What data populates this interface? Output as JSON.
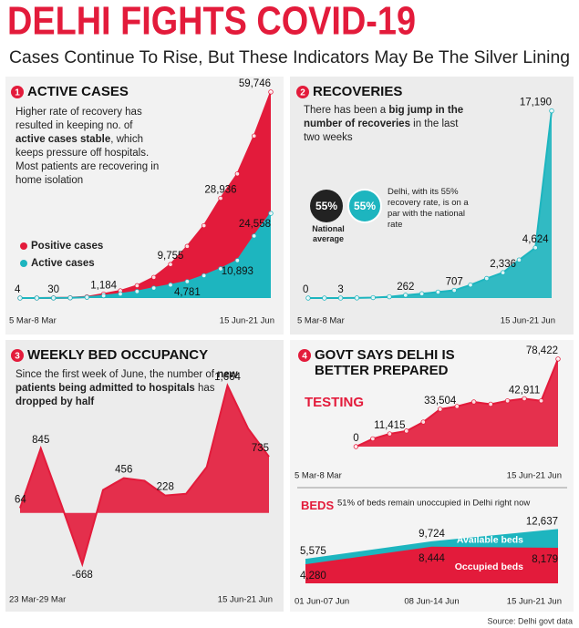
{
  "title": "DELHI FIGHTS COVID-19",
  "subtitle": "Cases Continue To Rise, But These Indicators May Be The Silver Lining",
  "source": "Source: Delhi govt data",
  "chart_data": [
    {
      "type": "area",
      "badge": 1,
      "title": "ACTIVE CASES",
      "description": [
        {
          "text": "Higher rate of recovery has resulted in keeping no. of ",
          "bold": false
        },
        {
          "text": "active cases stable",
          "bold": true
        },
        {
          "text": ", which keeps pressure off hospitals. Most patients are recovering in home isolation",
          "bold": false
        }
      ],
      "categories": [
        "5 Mar-8 Mar",
        null,
        null,
        null,
        null,
        null,
        null,
        null,
        null,
        null,
        null,
        null,
        null,
        null,
        null,
        "15 Jun-21 Jun"
      ],
      "series": [
        {
          "name": "Positive cases",
          "color": "#e31b3b",
          "values": [
            4,
            10,
            30,
            90,
            350,
            1184,
            2100,
            3600,
            6000,
            9755,
            15000,
            21000,
            28936,
            36000,
            47000,
            59746
          ],
          "value_labels": [
            "4",
            null,
            "30",
            null,
            null,
            "1,184",
            null,
            null,
            null,
            "9,755",
            null,
            null,
            "28,936",
            null,
            null,
            "59,746"
          ]
        },
        {
          "name": "Active cases",
          "color": "#1db5bf",
          "values": [
            2,
            8,
            20,
            60,
            220,
            650,
            1200,
            1900,
            2900,
            3800,
            4781,
            6500,
            8500,
            10893,
            18000,
            24558
          ],
          "value_labels": [
            null,
            null,
            null,
            null,
            null,
            null,
            null,
            null,
            null,
            null,
            "4,781",
            null,
            null,
            "10,893",
            null,
            "24,558"
          ]
        }
      ],
      "ylim": [
        0,
        60000
      ],
      "markers": true,
      "legend": "left"
    },
    {
      "type": "area",
      "badge": 2,
      "title": "RECOVERIES",
      "description": [
        {
          "text": "There has been a ",
          "bold": false
        },
        {
          "text": "big jump in the number of recoveries",
          "bold": true
        },
        {
          "text": " in the last two weeks",
          "bold": false
        }
      ],
      "annotations": {
        "national_rate": "55%",
        "national_label": "National average",
        "delhi_rate": "55%",
        "note": "Delhi, with its 55% recovery rate, is on a par with the national rate"
      },
      "categories": [
        "5 Mar-8 Mar",
        null,
        null,
        null,
        null,
        null,
        null,
        null,
        null,
        null,
        null,
        null,
        null,
        null,
        null,
        "15 Jun-21 Jun"
      ],
      "color": "#1db5bf",
      "values": [
        0,
        1,
        3,
        10,
        40,
        120,
        262,
        400,
        550,
        707,
        1200,
        1800,
        2336,
        3500,
        4624,
        17190
      ],
      "value_labels": [
        "0",
        null,
        "3",
        null,
        null,
        null,
        "262",
        null,
        null,
        "707",
        null,
        null,
        "2,336",
        null,
        "4,624",
        "17,190"
      ],
      "ylim": [
        0,
        18000
      ],
      "markers": true
    },
    {
      "type": "area",
      "badge": 3,
      "title": "WEEKLY BED OCCUPANCY",
      "description": [
        {
          "text": "Since the first week of June, the number of ",
          "bold": false
        },
        {
          "text": "new patients being admitted to hospitals",
          "bold": true
        },
        {
          "text": " has ",
          "bold": false
        },
        {
          "text": "dropped by half",
          "bold": true
        }
      ],
      "categories": [
        "23 Mar-29 Mar",
        null,
        null,
        null,
        null,
        null,
        null,
        null,
        null,
        null,
        null,
        null,
        "15 Jun-21 Jun"
      ],
      "color": "#e31b3b",
      "values": [
        64,
        845,
        100,
        -668,
        300,
        456,
        420,
        228,
        250,
        600,
        1664,
        1100,
        735
      ],
      "value_labels": [
        "64",
        "845",
        null,
        "-668",
        null,
        "456",
        null,
        "228",
        null,
        null,
        "1,664",
        null,
        "735"
      ],
      "ylim": [
        -800,
        1700
      ],
      "markers": false
    },
    {
      "type": "area",
      "badge": 4,
      "title": "GOVT SAYS DELHI IS BETTER PREPARED",
      "subtitle": "TESTING",
      "categories": [
        "5 Mar-8 Mar",
        null,
        null,
        null,
        null,
        null,
        null,
        null,
        null,
        null,
        null,
        null,
        null,
        null,
        null,
        "15 Jun-21 Jun"
      ],
      "color": "#e31b3b",
      "values": [
        null,
        null,
        null,
        0,
        7000,
        11415,
        14000,
        22000,
        33504,
        36000,
        40000,
        38000,
        41000,
        42911,
        41000,
        78422
      ],
      "value_labels": [
        null,
        null,
        null,
        "0",
        null,
        "11,415",
        null,
        null,
        "33,504",
        null,
        null,
        null,
        null,
        "42,911",
        null,
        "78,422"
      ],
      "ylim": [
        0,
        80000
      ],
      "markers": true
    },
    {
      "type": "area",
      "title": "BEDS",
      "subtitle": "51% of beds remain unoccupied in Delhi right now",
      "categories": [
        "01 Jun-07 Jun",
        "08 Jun-14 Jun",
        "15 Jun-21 Jun"
      ],
      "series": [
        {
          "name": "Available beds",
          "color": "#1db5bf",
          "values": [
            5575,
            9724,
            12637
          ],
          "value_labels": [
            "5,575",
            "9,724",
            "12,637"
          ]
        },
        {
          "name": "Occupied beds",
          "color": "#e31b3b",
          "values": [
            4280,
            8444,
            8179
          ],
          "value_labels": [
            "4,280",
            "8,444",
            "8,179"
          ]
        }
      ],
      "ylim": [
        0,
        14000
      ],
      "markers": false,
      "legend": "inside"
    }
  ]
}
